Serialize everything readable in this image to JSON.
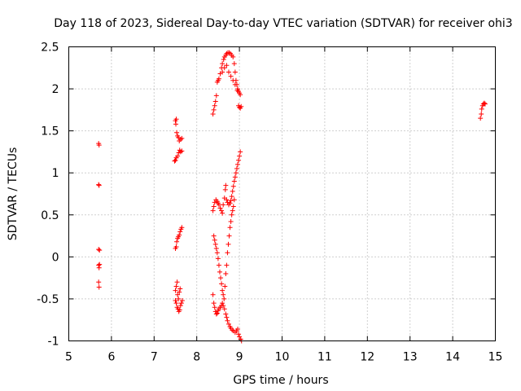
{
  "chart_data": {
    "type": "scatter",
    "title": "Day 118 of 2023, Sidereal Day-to-day VTEC variation (SDTVAR) for receiver ohi3",
    "xlabel": "GPS time / hours",
    "ylabel": "SDTVAR / TECUs",
    "xlim": [
      5,
      15
    ],
    "ylim": [
      -1,
      2.5
    ],
    "xticks": [
      "5",
      "6",
      "7",
      "8",
      "9",
      "10",
      "11",
      "12",
      "13",
      "14",
      "15"
    ],
    "yticks": [
      "-1",
      "-0.5",
      "0",
      "0.5",
      "1",
      "1.5",
      "2",
      "2.5"
    ],
    "grid": true,
    "marker": "+",
    "color": "#ff0000",
    "series": [
      {
        "name": "SDTVAR",
        "points": [
          [
            5.7,
            1.35
          ],
          [
            5.71,
            1.33
          ],
          [
            5.7,
            0.86
          ],
          [
            5.71,
            0.85
          ],
          [
            5.7,
            0.09
          ],
          [
            5.72,
            0.08
          ],
          [
            5.7,
            -0.1
          ],
          [
            5.71,
            -0.13
          ],
          [
            5.72,
            -0.09
          ],
          [
            5.7,
            -0.3
          ],
          [
            5.71,
            -0.36
          ],
          [
            7.5,
            1.62
          ],
          [
            7.52,
            1.64
          ],
          [
            7.51,
            1.58
          ],
          [
            7.53,
            1.48
          ],
          [
            7.55,
            1.44
          ],
          [
            7.57,
            1.42
          ],
          [
            7.59,
            1.38
          ],
          [
            7.62,
            1.4
          ],
          [
            7.65,
            1.41
          ],
          [
            7.48,
            1.14
          ],
          [
            7.5,
            1.15
          ],
          [
            7.52,
            1.18
          ],
          [
            7.55,
            1.2
          ],
          [
            7.58,
            1.24
          ],
          [
            7.6,
            1.27
          ],
          [
            7.62,
            1.25
          ],
          [
            7.65,
            1.26
          ],
          [
            7.5,
            0.1
          ],
          [
            7.52,
            0.12
          ],
          [
            7.53,
            0.18
          ],
          [
            7.55,
            0.22
          ],
          [
            7.57,
            0.24
          ],
          [
            7.59,
            0.26
          ],
          [
            7.61,
            0.3
          ],
          [
            7.63,
            0.33
          ],
          [
            7.65,
            0.35
          ],
          [
            7.5,
            -0.4
          ],
          [
            7.52,
            -0.35
          ],
          [
            7.54,
            -0.3
          ],
          [
            7.55,
            -0.45
          ],
          [
            7.57,
            -0.5
          ],
          [
            7.59,
            -0.42
          ],
          [
            7.61,
            -0.38
          ],
          [
            7.5,
            -0.52
          ],
          [
            7.52,
            -0.55
          ],
          [
            7.54,
            -0.6
          ],
          [
            7.56,
            -0.62
          ],
          [
            7.58,
            -0.65
          ],
          [
            7.6,
            -0.63
          ],
          [
            7.62,
            -0.58
          ],
          [
            7.64,
            -0.55
          ],
          [
            7.66,
            -0.52
          ],
          [
            8.38,
            1.7
          ],
          [
            8.4,
            1.75
          ],
          [
            8.42,
            1.8
          ],
          [
            8.44,
            1.85
          ],
          [
            8.46,
            1.92
          ],
          [
            8.48,
            2.08
          ],
          [
            8.5,
            2.1
          ],
          [
            8.52,
            2.12
          ],
          [
            8.55,
            2.18
          ],
          [
            8.58,
            2.25
          ],
          [
            8.6,
            2.3
          ],
          [
            8.63,
            2.35
          ],
          [
            8.65,
            2.38
          ],
          [
            8.68,
            2.4
          ],
          [
            8.7,
            2.42
          ],
          [
            8.73,
            2.43
          ],
          [
            8.76,
            2.43
          ],
          [
            8.79,
            2.42
          ],
          [
            8.82,
            2.4
          ],
          [
            8.85,
            2.38
          ],
          [
            8.88,
            2.3
          ],
          [
            8.9,
            2.2
          ],
          [
            8.92,
            2.1
          ],
          [
            8.94,
            2.05
          ],
          [
            8.96,
            2.0
          ],
          [
            8.98,
            1.97
          ],
          [
            9.0,
            1.95
          ],
          [
            9.02,
            1.93
          ],
          [
            8.6,
            2.2
          ],
          [
            8.65,
            2.25
          ],
          [
            8.7,
            2.28
          ],
          [
            8.75,
            2.2
          ],
          [
            8.8,
            2.15
          ],
          [
            8.85,
            2.1
          ],
          [
            8.9,
            2.05
          ],
          [
            8.95,
            1.98
          ],
          [
            8.98,
            1.8
          ],
          [
            9.0,
            1.78
          ],
          [
            9.02,
            1.77
          ],
          [
            9.04,
            1.79
          ],
          [
            8.38,
            0.55
          ],
          [
            8.4,
            0.6
          ],
          [
            8.42,
            0.65
          ],
          [
            8.45,
            0.68
          ],
          [
            8.48,
            0.66
          ],
          [
            8.5,
            0.64
          ],
          [
            8.52,
            0.62
          ],
          [
            8.55,
            0.58
          ],
          [
            8.58,
            0.55
          ],
          [
            8.6,
            0.52
          ],
          [
            8.62,
            0.62
          ],
          [
            8.65,
            0.7
          ],
          [
            8.67,
            0.8
          ],
          [
            8.68,
            0.85
          ],
          [
            8.7,
            0.68
          ],
          [
            8.72,
            0.65
          ],
          [
            8.75,
            0.62
          ],
          [
            8.78,
            0.64
          ],
          [
            8.8,
            0.67
          ],
          [
            8.82,
            0.72
          ],
          [
            8.84,
            0.78
          ],
          [
            8.86,
            0.84
          ],
          [
            8.88,
            0.9
          ],
          [
            8.9,
            0.95
          ],
          [
            8.92,
            1.0
          ],
          [
            8.94,
            1.05
          ],
          [
            8.96,
            1.1
          ],
          [
            8.98,
            1.15
          ],
          [
            9.0,
            1.2
          ],
          [
            9.02,
            1.25
          ],
          [
            8.4,
            0.25
          ],
          [
            8.42,
            0.2
          ],
          [
            8.44,
            0.15
          ],
          [
            8.46,
            0.1
          ],
          [
            8.48,
            0.05
          ],
          [
            8.5,
            -0.02
          ],
          [
            8.52,
            -0.1
          ],
          [
            8.54,
            -0.18
          ],
          [
            8.56,
            -0.25
          ],
          [
            8.58,
            -0.32
          ],
          [
            8.6,
            -0.4
          ],
          [
            8.62,
            -0.45
          ],
          [
            8.64,
            -0.5
          ],
          [
            8.66,
            -0.35
          ],
          [
            8.68,
            -0.2
          ],
          [
            8.7,
            -0.1
          ],
          [
            8.72,
            0.05
          ],
          [
            8.74,
            0.15
          ],
          [
            8.76,
            0.25
          ],
          [
            8.78,
            0.35
          ],
          [
            8.8,
            0.42
          ],
          [
            8.82,
            0.5
          ],
          [
            8.84,
            0.55
          ],
          [
            8.86,
            0.6
          ],
          [
            8.88,
            0.68
          ],
          [
            8.38,
            -0.45
          ],
          [
            8.4,
            -0.55
          ],
          [
            8.42,
            -0.6
          ],
          [
            8.44,
            -0.65
          ],
          [
            8.46,
            -0.68
          ],
          [
            8.48,
            -0.67
          ],
          [
            8.5,
            -0.64
          ],
          [
            8.52,
            -0.62
          ],
          [
            8.55,
            -0.6
          ],
          [
            8.58,
            -0.58
          ],
          [
            8.6,
            -0.55
          ],
          [
            8.62,
            -0.58
          ],
          [
            8.65,
            -0.62
          ],
          [
            8.68,
            -0.68
          ],
          [
            8.7,
            -0.72
          ],
          [
            8.72,
            -0.76
          ],
          [
            8.75,
            -0.8
          ],
          [
            8.78,
            -0.83
          ],
          [
            8.8,
            -0.85
          ],
          [
            8.83,
            -0.87
          ],
          [
            8.86,
            -0.88
          ],
          [
            8.9,
            -0.9
          ],
          [
            8.93,
            -0.88
          ],
          [
            8.96,
            -0.86
          ],
          [
            8.98,
            -0.92
          ],
          [
            9.0,
            -0.95
          ],
          [
            9.03,
            -0.98
          ],
          [
            9.05,
            -1.0
          ],
          [
            14.65,
            1.65
          ],
          [
            14.67,
            1.7
          ],
          [
            14.68,
            1.76
          ],
          [
            14.7,
            1.8
          ],
          [
            14.72,
            1.82
          ],
          [
            14.74,
            1.83
          ],
          [
            14.76,
            1.82
          ]
        ]
      }
    ]
  }
}
